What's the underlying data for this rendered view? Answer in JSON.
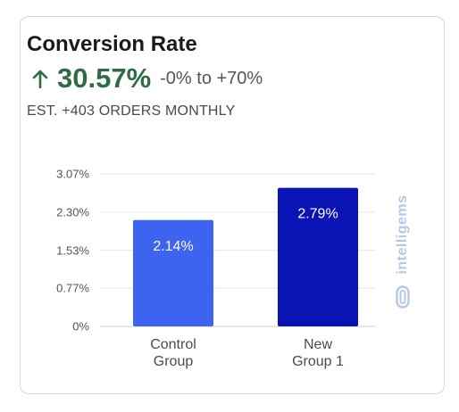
{
  "card": {
    "title": "Conversion Rate",
    "lift_value": "30.57%",
    "lift_range": "-0% to +70%",
    "subtitle": "EST. +403 ORDERS MONTHLY"
  },
  "watermark": {
    "text": "intelligems",
    "icon": "intelligems-logo-icon"
  },
  "colors": {
    "lift": "#2f6b45",
    "control_bar": "#3c64f0",
    "variant_bar": "#0a14b4",
    "watermark": "#b7c6ec"
  },
  "chart_data": {
    "type": "bar",
    "categories": [
      [
        "Control",
        "Group"
      ],
      [
        "New",
        "Group 1"
      ]
    ],
    "values": [
      2.14,
      2.79
    ],
    "value_labels": [
      "2.14%",
      "2.79%"
    ],
    "bar_colors": [
      "#3c64f0",
      "#0a14b4"
    ],
    "ylim": [
      0,
      3.07
    ],
    "yticks": [
      0,
      0.77,
      1.53,
      2.3,
      3.07
    ],
    "ytick_labels": [
      "0%",
      "0.77%",
      "1.53%",
      "2.30%",
      "3.07%"
    ],
    "grid": true,
    "title": "",
    "xlabel": "",
    "ylabel": ""
  }
}
